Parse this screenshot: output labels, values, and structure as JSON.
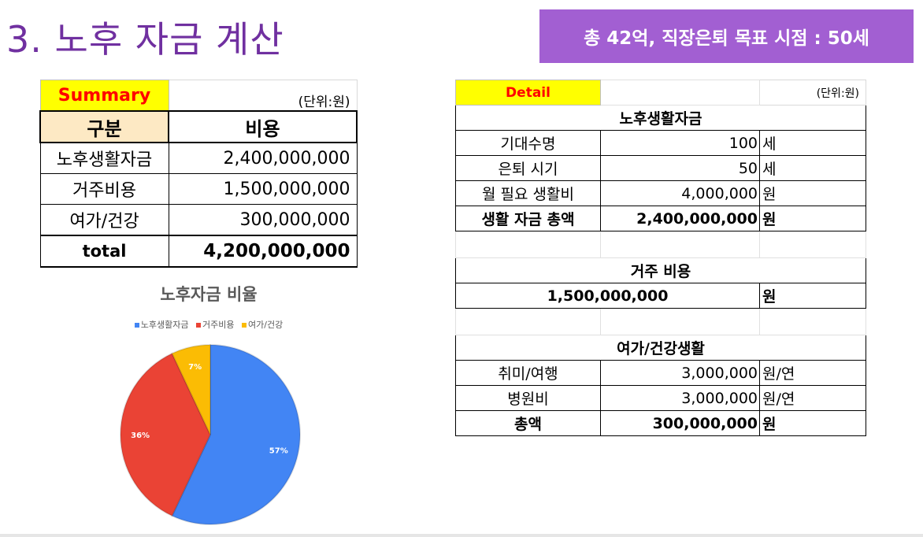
{
  "title": "3. 노후 자금 계산",
  "banner": "총 42억, 직장은퇴 목표 시점  : 50세",
  "summary": {
    "header": "Summary",
    "unit": "(단위:원)",
    "col_label": "구분",
    "col_cost": "비용",
    "rows": [
      {
        "label": "노후생활자금",
        "value": "2,400,000,000"
      },
      {
        "label": "거주비용",
        "value": "1,500,000,000"
      },
      {
        "label": "여가/건강",
        "value": "300,000,000"
      }
    ],
    "total_label": "total",
    "total_value": "4,200,000,000"
  },
  "detail": {
    "header": "Detail",
    "unit": "(단위:원)",
    "sec1_title": "노후생활자금",
    "sec1_rows": [
      {
        "label": "기대수명",
        "value": "100",
        "unit": "세"
      },
      {
        "label": "은퇴 시기",
        "value": "50",
        "unit": "세"
      },
      {
        "label": "월 필요 생활비",
        "value": "4,000,000",
        "unit": "원"
      },
      {
        "label": "생활 자금 총액",
        "value": "2,400,000,000",
        "unit": "원"
      }
    ],
    "sec2_title": "거주 비용",
    "sec2_value": "1,500,000,000",
    "sec2_unit": "원",
    "sec3_title": "여가/건강생활",
    "sec3_rows": [
      {
        "label": "취미/여행",
        "value": "3,000,000",
        "unit": "원/연"
      },
      {
        "label": "병원비",
        "value": "3,000,000",
        "unit": "원/연"
      },
      {
        "label": "총액",
        "value": "300,000,000",
        "unit": "원"
      }
    ]
  },
  "chart_data": {
    "type": "pie",
    "title": "노후자금 비율",
    "legend_position": "top",
    "categories": [
      "노후생활자금",
      "거주비용",
      "여가/건강"
    ],
    "values": [
      57,
      36,
      7
    ],
    "labels": [
      "57%",
      "36%",
      "7%"
    ],
    "colors": [
      "#4285f4",
      "#ea4335",
      "#fbbc04"
    ]
  }
}
